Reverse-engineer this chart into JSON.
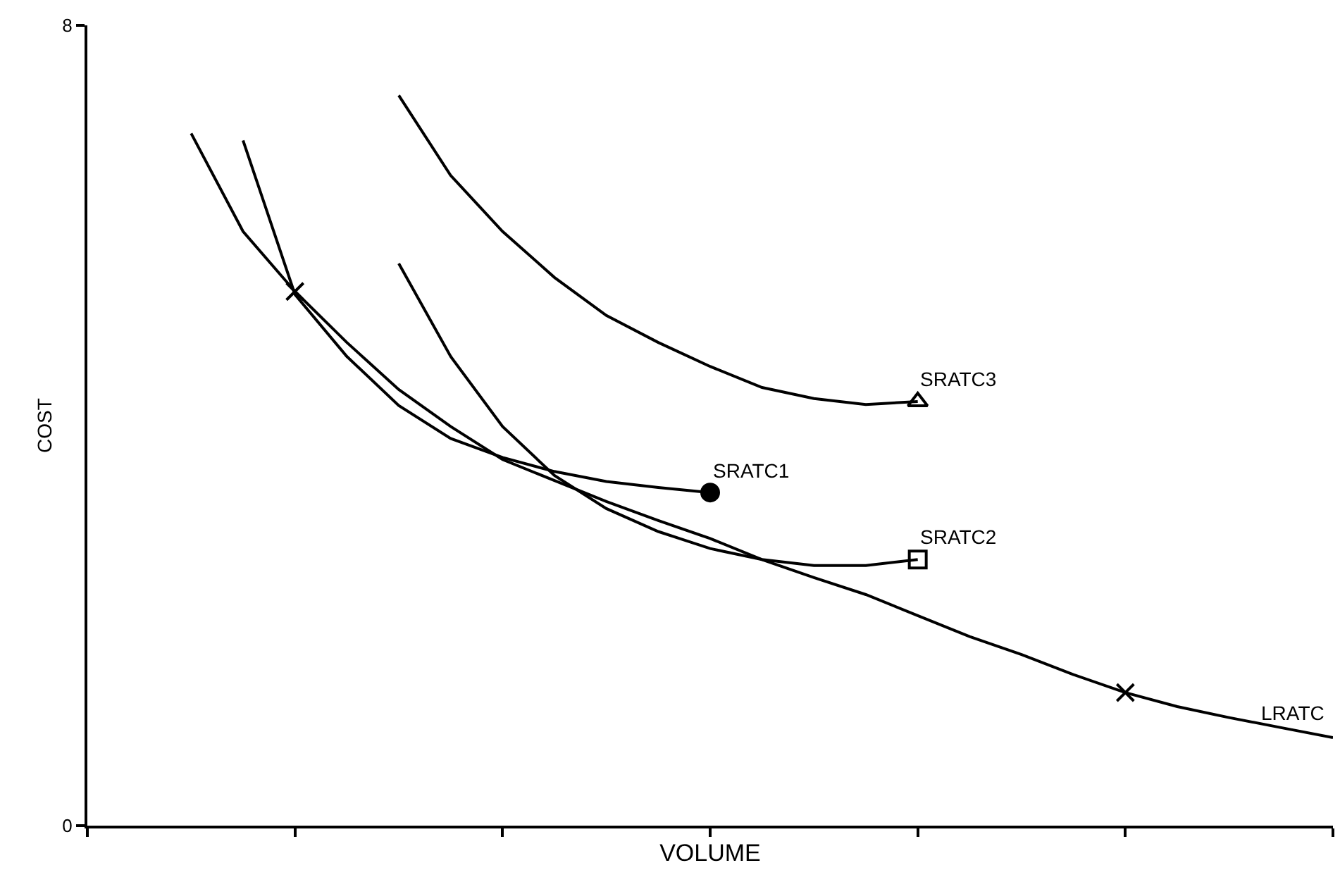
{
  "chart_data": {
    "type": "line",
    "xlabel": "VOLUME",
    "ylabel": "COST",
    "categories": [
      null,
      null,
      null,
      null,
      null,
      null,
      null,
      null,
      null,
      null,
      null,
      null,
      null,
      null,
      null,
      null,
      null,
      null,
      null,
      null,
      null,
      null,
      null,
      null,
      null
    ],
    "ylim": [
      0,
      8
    ],
    "yticks": [
      0,
      8
    ],
    "tick_labels": "y",
    "legend": false,
    "line_style": "solid",
    "series": [
      {
        "name": "LRATC",
        "color": "#000000",
        "values": [
          null,
          null,
          6.92,
          5.94,
          5.34,
          4.83,
          4.36,
          3.99,
          3.66,
          3.45,
          3.24,
          3.05,
          2.87,
          2.66,
          2.48,
          2.31,
          2.1,
          1.89,
          1.71,
          1.51,
          1.33,
          1.19,
          1.08,
          0.98,
          0.88
        ]
      },
      {
        "name": "SRATC1",
        "color": "#000000",
        "values": [
          null,
          null,
          null,
          6.85,
          5.31,
          4.69,
          4.2,
          3.87,
          3.68,
          3.54,
          3.44,
          3.38,
          3.33,
          null,
          null,
          null,
          null,
          null,
          null,
          null,
          null,
          null,
          null,
          null,
          null
        ]
      },
      {
        "name": "SRATC2",
        "color": "#000000",
        "values": [
          null,
          null,
          null,
          null,
          null,
          null,
          5.62,
          4.69,
          3.99,
          3.5,
          3.17,
          2.94,
          2.77,
          2.66,
          2.6,
          2.6,
          2.66,
          null,
          null,
          null,
          null,
          null,
          null,
          null,
          null
        ]
      },
      {
        "name": "SRATC3",
        "color": "#000000",
        "values": [
          null,
          null,
          null,
          null,
          null,
          null,
          7.3,
          6.5,
          5.94,
          5.48,
          5.1,
          4.83,
          4.59,
          4.38,
          4.27,
          4.21,
          4.24,
          null,
          null,
          null,
          null,
          null,
          null,
          null,
          null
        ]
      },
      {
        "type": "scatter",
        "marker": "cross",
        "color": "#000000",
        "values": [
          null,
          null,
          null,
          null,
          5.34,
          null,
          null,
          null,
          null,
          null,
          null,
          null,
          null,
          null,
          null,
          null,
          null,
          null,
          null,
          null,
          1.33,
          null,
          null,
          null,
          null
        ]
      },
      {
        "type": "scatter",
        "marker": "circle",
        "color": "#000000",
        "values": [
          null,
          null,
          null,
          null,
          null,
          null,
          null,
          null,
          null,
          null,
          null,
          null,
          3.33,
          null,
          null,
          null,
          null,
          null,
          null,
          null,
          null,
          null,
          null,
          null,
          null
        ]
      },
      {
        "type": "scatter",
        "marker": "square",
        "color": "#000000",
        "values": [
          null,
          null,
          null,
          null,
          null,
          null,
          null,
          null,
          null,
          null,
          null,
          null,
          null,
          null,
          null,
          null,
          2.66,
          null,
          null,
          null,
          null,
          null,
          null,
          null,
          null
        ]
      },
      {
        "type": "scatter",
        "marker": "triangle",
        "color": "#000000",
        "values": [
          null,
          null,
          null,
          null,
          null,
          null,
          null,
          null,
          null,
          null,
          null,
          null,
          null,
          null,
          null,
          null,
          4.24,
          null,
          null,
          null,
          null,
          null,
          null,
          null,
          null
        ]
      }
    ]
  }
}
